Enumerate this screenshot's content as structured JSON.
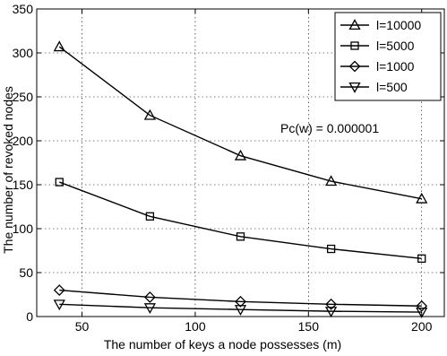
{
  "chart_data": {
    "type": "line",
    "title": "",
    "xlabel": "The number of keys a node possesses (m)",
    "ylabel": "The number of revoked nodes",
    "x": [
      40,
      80,
      120,
      160,
      200
    ],
    "xlim": [
      30,
      210
    ],
    "ylim": [
      0,
      350
    ],
    "xticks": [
      50,
      100,
      150,
      200
    ],
    "yticks": [
      0,
      50,
      100,
      150,
      200,
      250,
      300,
      350
    ],
    "grid": true,
    "legend_position": "top-right",
    "annotation": "Pc(w) = 0.000001",
    "series": [
      {
        "name": "l=10000",
        "marker": "triangle-up",
        "values": [
          307,
          229,
          183,
          154,
          134
        ]
      },
      {
        "name": "l=5000",
        "marker": "square",
        "values": [
          153,
          114,
          91,
          77,
          66
        ]
      },
      {
        "name": "l=1000",
        "marker": "diamond",
        "values": [
          30,
          22,
          17,
          14,
          12
        ]
      },
      {
        "name": "l=500",
        "marker": "triangle-down",
        "values": [
          14,
          10,
          8,
          6,
          5
        ]
      }
    ]
  }
}
